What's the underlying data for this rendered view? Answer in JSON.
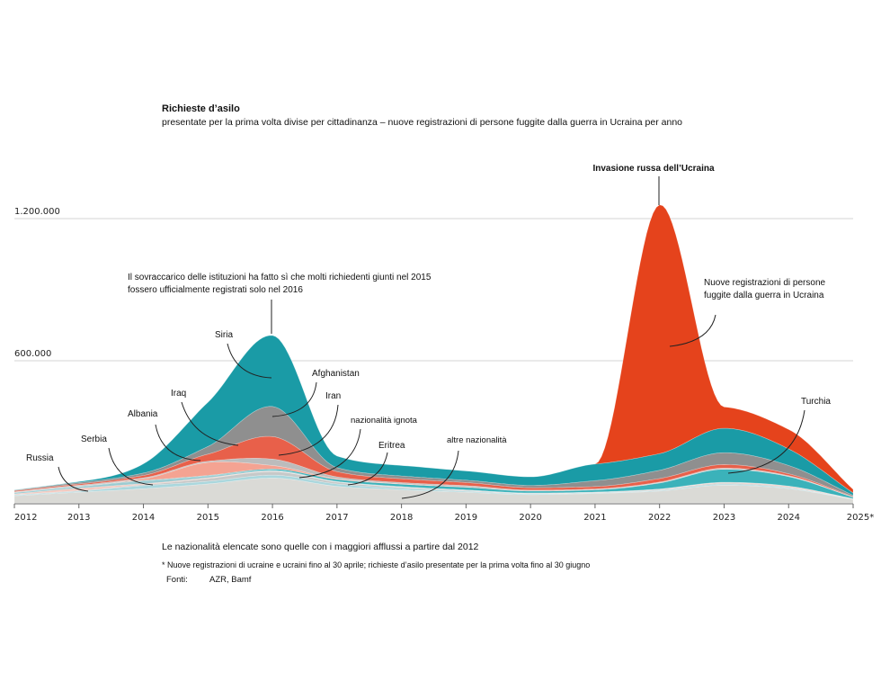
{
  "chart_data": {
    "type": "area",
    "stacked": true,
    "title": "Richieste d’asilo",
    "subtitle": "presentate per la prima volta divise per cittadinanza – nuove registrazioni di persone fuggite dalla guerra in Ucraina per anno",
    "x": [
      2012,
      2013,
      2014,
      2015,
      2016,
      2017,
      2018,
      2019,
      2020,
      2021,
      2022,
      2023,
      2024,
      2025
    ],
    "x_tick_labels": [
      "2012",
      "2013",
      "2014",
      "2015",
      "2016",
      "2017",
      "2018",
      "2019",
      "2020",
      "2021",
      "2022",
      "2023",
      "2024",
      "2025*"
    ],
    "y_ticks": [
      600000,
      1200000
    ],
    "y_tick_labels": [
      "600.000",
      "1.200.000"
    ],
    "ylim": [
      0,
      1300000
    ],
    "grid": "horizontal",
    "series": [
      {
        "name": "altre nazionalità",
        "color": "#dadad6",
        "values": [
          30000,
          45000,
          60000,
          80000,
          105000,
          70000,
          55000,
          45000,
          35000,
          40000,
          50000,
          75000,
          60000,
          15000
        ]
      },
      {
        "name": "Eritrea",
        "color": "#aad7dd",
        "values": [
          3000,
          4000,
          13000,
          11000,
          12000,
          10000,
          6000,
          4000,
          3000,
          2000,
          3000,
          4000,
          3000,
          1000
        ]
      },
      {
        "name": "nazionalità ignota",
        "color": "#c6c9c9",
        "values": [
          2000,
          3000,
          4000,
          12000,
          15000,
          8000,
          5000,
          3000,
          2000,
          2000,
          3000,
          4000,
          3000,
          1000
        ]
      },
      {
        "name": "Russia",
        "color": "#f3c8be",
        "values": [
          3000,
          10000,
          4000,
          3000,
          2000,
          1000,
          1000,
          1000,
          1000,
          1000,
          2000,
          3000,
          4000,
          1000
        ]
      },
      {
        "name": "Serbia",
        "color": "#9ccbd1",
        "values": [
          5000,
          7000,
          12000,
          8000,
          4000,
          2000,
          2000,
          2000,
          1000,
          1000,
          1000,
          1000,
          1000,
          0
        ]
      },
      {
        "name": "Turchia",
        "color": "#3bb2ba",
        "values": [
          1000,
          1000,
          2000,
          2000,
          5000,
          8000,
          10000,
          11000,
          8000,
          9000,
          25000,
          55000,
          40000,
          6000
        ]
      },
      {
        "name": "Albania",
        "color": "#f4a392",
        "values": [
          1000,
          1000,
          7000,
          55000,
          15000,
          3000,
          2000,
          2000,
          1000,
          1000,
          1000,
          1000,
          1000,
          0
        ]
      },
      {
        "name": "Iran",
        "color": "#bcbcbc",
        "values": [
          2000,
          4000,
          4000,
          5000,
          27000,
          8000,
          5000,
          5000,
          3000,
          3000,
          3000,
          4000,
          3000,
          1000
        ]
      },
      {
        "name": "Iraq",
        "color": "#e8604a",
        "values": [
          4000,
          5000,
          10000,
          30000,
          95000,
          22000,
          16000,
          13000,
          10000,
          10000,
          15000,
          15000,
          8000,
          2000
        ]
      },
      {
        "name": "Afghanistan",
        "color": "#8f8f8f",
        "values": [
          3000,
          6000,
          10000,
          32000,
          127000,
          17000,
          12000,
          10000,
          10000,
          25000,
          35000,
          50000,
          35000,
          5000
        ]
      },
      {
        "name": "Siria",
        "color": "#1a9ba6",
        "values": [
          1000,
          4000,
          39000,
          187000,
          300000,
          49000,
          44000,
          39000,
          36000,
          70000,
          70000,
          103000,
          70000,
          10000
        ]
      },
      {
        "name": "Nuove registrazioni di persone fuggite dalla guerra in Ucraina",
        "color": "#e5431c",
        "values": [
          0,
          0,
          0,
          0,
          0,
          0,
          0,
          0,
          0,
          0,
          1050000,
          90000,
          82000,
          15000
        ]
      }
    ],
    "annotations": {
      "invasion": "Invasione russa dell’Ucraina",
      "overload_1": "Il sovraccarico delle istituzioni ha fatto sì che molti richiedenti giunti nel 2015",
      "overload_2": "fossero ufficialmente registrati solo nel 2016",
      "ukraine_1": "Nuove registrazioni di persone",
      "ukraine_2": "fuggite dalla guerra in Ucraina",
      "siria": "Siria",
      "afghanistan": "Afghanistan",
      "iraq": "Iraq",
      "iran": "Iran",
      "albania": "Albania",
      "ignota": "nazionalità ignota",
      "serbia": "Serbia",
      "eritrea": "Eritrea",
      "altre": "altre nazionalità",
      "russia": "Russia",
      "turchia": "Turchia"
    }
  },
  "notes": {
    "listed": "Le nazionalità elencate sono quelle con i maggiori afflussi a partire dal 2012",
    "footnote": "* Nuove registrazioni di ucraine e ucraini fino al 30 aprile; richieste d’asilo presentate per la prima volta fino al 30 giugno",
    "sources_label": "Fonti:",
    "sources": "AZR, Bamf"
  }
}
